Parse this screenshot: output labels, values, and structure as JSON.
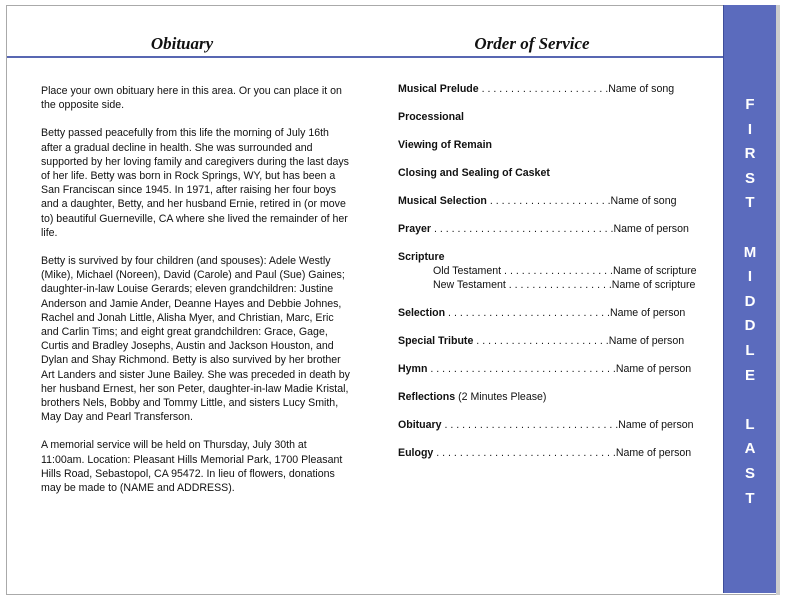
{
  "obituary": {
    "title": "Obituary",
    "paragraphs": [
      "Place your own obituary here in this area. Or you can place it on the opposite side.",
      "Betty passed peacefully from this life the morning of July 16th after a gradual decline in health.  She was surrounded and supported by her loving family and caregivers during the last days of her life.  Betty was born in Rock Springs, WY, but has been a San Franciscan since 1945.  In 1971, after raising her four boys and a daughter, Betty, and her husband Ernie, retired in (or move to) beautiful Guerneville, CA where she lived the remainder of her life.",
      "Betty is survived by four children (and spouses): Adele Westly (Mike), Michael (Noreen), David (Carole) and Paul (Sue) Gaines;  daughter-in-law Louise Gerards;  eleven grandchildren: Justine Anderson and Jamie Ander, Deanne Hayes and Debbie Johnes, Rachel and Jonah Little, Alisha Myer, and Christian, Marc, Eric and Carlin Tims;  and eight great grandchildren: Grace, Gage, Curtis and Bradley Josephs, Austin and Jackson Houston, and Dylan and Shay Richmond.  Betty is also survived by her brother Art Landers and sister June Bailey.  She was preceded in death by her husband Ernest, her son Peter, daughter-in-law Madie Kristal, brothers Nels, Bobby and Tommy Little, and sisters Lucy Smith, May Day and Pearl Transferson.",
      "A memorial service will be held on Thursday, July 30th at 11:00am.  Location:  Pleasant Hills Memorial Park, 1700 Pleasant Hills Road, Sebastopol, CA 95472.  In lieu of flowers, donations may be made to (NAME and ADDRESS)."
    ]
  },
  "service": {
    "title": "Order of Service",
    "items": [
      {
        "label": "Musical Prelude",
        "dots": " . . . . . . . . . . . . . . . . . . . . . .",
        "value": "Name of song"
      },
      {
        "label": "Processional",
        "dots": "",
        "value": ""
      },
      {
        "label": "Viewing of Remain",
        "dots": "",
        "value": ""
      },
      {
        "label": "Closing and Sealing of Casket",
        "dots": "",
        "value": ""
      },
      {
        "label": "Musical Selection",
        "dots": " . . . . . . . . . . . . . . . . . . . . .",
        "value": "Name of song"
      },
      {
        "label": "Prayer",
        "dots": " . . . . . . . . . . . . . . . . . . . . . . . . . . . . . . .",
        "value": "Name of person"
      },
      {
        "label": "Scripture",
        "dots": "",
        "value": ""
      },
      {
        "label": "Selection",
        "dots": " . . . . . . . . . . . . . . . . . . . . . . . . . . . .",
        "value": "Name of person"
      },
      {
        "label": "Special Tribute",
        "dots": " . . . . . . . . . . . . . . . . . . . . . . .",
        "value": "Name of person"
      },
      {
        "label": "Hymn",
        "dots": " . . . . . . . . . . . . . . . . . . . . . . . . . . . . . . . .",
        "value": "Name of person"
      },
      {
        "label": "Reflections",
        "dots": "",
        "value": "(2 Minutes Please)"
      },
      {
        "label": "Obituary",
        "dots": " . . . . . . . . . . . . . . . . . . . . . . . . . . . . . .",
        "value": "Name of person"
      },
      {
        "label": "Eulogy",
        "dots": " . . . . . . . . . . . . . . . . . . . . . . . . . . . . . . .",
        "value": "Name of person"
      }
    ],
    "scripture_sub": [
      {
        "label": "Old Testament",
        "dots": "  . . . . . . . . . . . . . . . . . . .",
        "value": "Name of scripture"
      },
      {
        "label": "New Testament",
        "dots": "  . . . . . . . . . . . . . . . . . .",
        "value": "Name of scripture"
      }
    ]
  },
  "sidebar": {
    "letters": [
      "F",
      "I",
      "R",
      "S",
      "T",
      "",
      "M",
      "I",
      "D",
      "D",
      "L",
      "E",
      "",
      "L",
      "A",
      "S",
      "T"
    ],
    "color": "#5b6bbd"
  }
}
